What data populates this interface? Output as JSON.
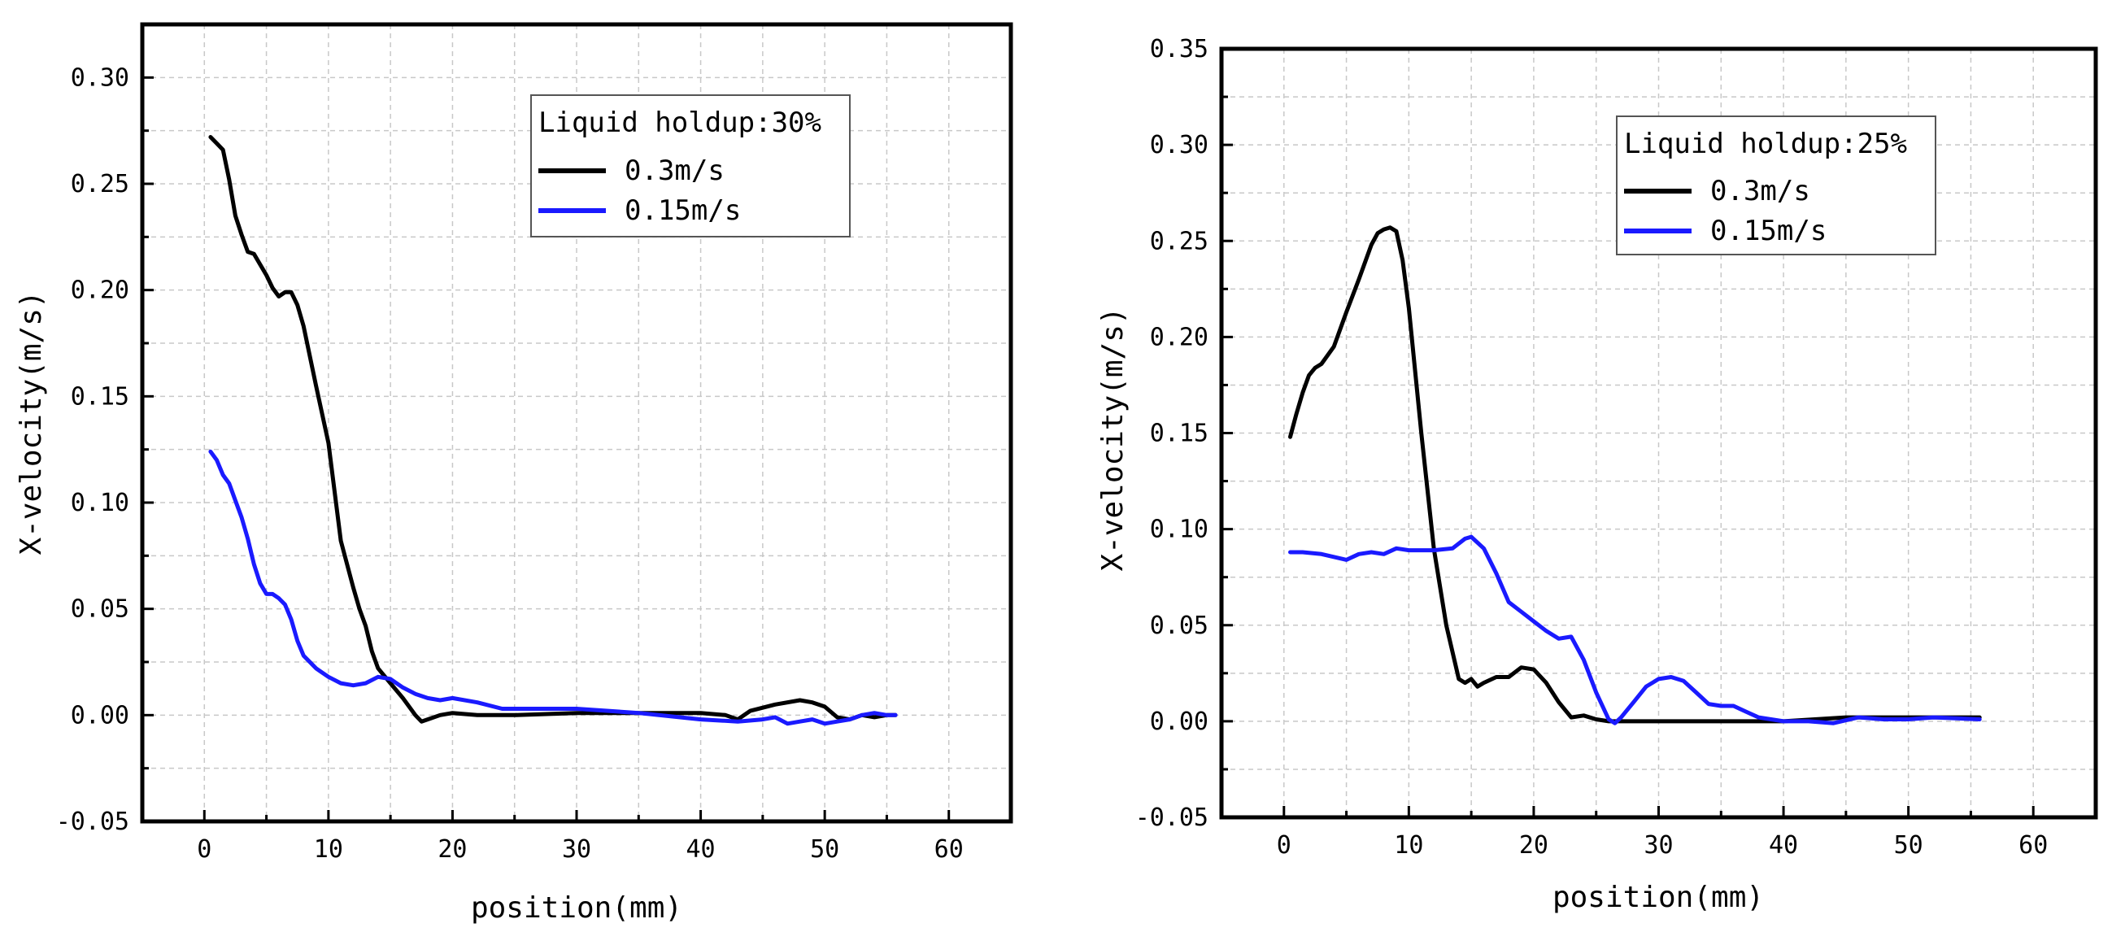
{
  "chart_data": [
    {
      "type": "line",
      "title": "",
      "xlabel": "position(mm)",
      "ylabel": "X-velocity(m/s)",
      "xlim": [
        -5,
        65
      ],
      "ylim": [
        -0.05,
        0.325
      ],
      "xticks": [
        0,
        10,
        20,
        30,
        40,
        50,
        60
      ],
      "xtick_labels": [
        "0",
        "10",
        "20",
        "30",
        "40",
        "50",
        "60"
      ],
      "yticks": [
        -0.05,
        0,
        0.05,
        0.1,
        0.15,
        0.2,
        0.25,
        0.3
      ],
      "ytick_labels": [
        "-0.05",
        "0.00",
        "0.05",
        "0.10",
        "0.15",
        "0.20",
        "0.25",
        "0.30"
      ],
      "grid": true,
      "legend": {
        "title": "Liquid holdup:30%",
        "position": "top-center"
      },
      "series": [
        {
          "name": "0.3m/s",
          "color": "#000000",
          "x": [
            0.5,
            1.0,
            1.5,
            2.0,
            2.5,
            3.0,
            3.5,
            4.0,
            4.5,
            5.0,
            5.5,
            6.0,
            6.5,
            7.0,
            7.5,
            8.0,
            9.0,
            10.0,
            10.5,
            11.0,
            12.0,
            12.5,
            13.0,
            13.5,
            14.0,
            15.0,
            16.0,
            17.0,
            17.5,
            18.0,
            19.0,
            20.0,
            22.0,
            25.0,
            30.0,
            35.0,
            40.0,
            42.0,
            43.0,
            44.0,
            46.0,
            48.0,
            49.0,
            50.0,
            51.0,
            52.0,
            53.0,
            54.0,
            55.0,
            55.7
          ],
          "y": [
            0.272,
            0.269,
            0.266,
            0.252,
            0.235,
            0.226,
            0.218,
            0.217,
            0.212,
            0.207,
            0.201,
            0.197,
            0.199,
            0.199,
            0.193,
            0.183,
            0.155,
            0.128,
            0.105,
            0.082,
            0.06,
            0.05,
            0.042,
            0.03,
            0.022,
            0.015,
            0.008,
            0.0,
            -0.003,
            -0.002,
            0.0,
            0.001,
            0.0,
            0.0,
            0.001,
            0.001,
            0.001,
            0.0,
            -0.002,
            0.002,
            0.005,
            0.007,
            0.006,
            0.004,
            -0.001,
            -0.002,
            0.0,
            -0.001,
            0.0,
            0.0
          ]
        },
        {
          "name": "0.15m/s",
          "color": "#1a1aff",
          "x": [
            0.5,
            1.0,
            1.5,
            2.0,
            2.5,
            3.0,
            3.5,
            4.0,
            4.5,
            5.0,
            5.5,
            6.0,
            6.5,
            7.0,
            7.5,
            8.0,
            8.5,
            9.0,
            9.5,
            10.0,
            11.0,
            12.0,
            13.0,
            14.0,
            15.0,
            16.0,
            17.0,
            18.0,
            19.0,
            20.0,
            22.0,
            24.0,
            26.0,
            30.0,
            35.0,
            40.0,
            43.0,
            45.0,
            46.0,
            47.0,
            48.0,
            49.0,
            50.0,
            51.0,
            52.0,
            53.0,
            54.0,
            55.0,
            55.7
          ],
          "y": [
            0.124,
            0.12,
            0.113,
            0.109,
            0.101,
            0.093,
            0.083,
            0.071,
            0.062,
            0.057,
            0.057,
            0.055,
            0.052,
            0.045,
            0.035,
            0.028,
            0.025,
            0.022,
            0.02,
            0.018,
            0.015,
            0.014,
            0.015,
            0.018,
            0.017,
            0.013,
            0.01,
            0.008,
            0.007,
            0.008,
            0.006,
            0.003,
            0.003,
            0.003,
            0.001,
            -0.002,
            -0.003,
            -0.002,
            -0.001,
            -0.004,
            -0.003,
            -0.002,
            -0.004,
            -0.003,
            -0.002,
            0.0,
            0.001,
            0.0,
            0.0
          ]
        }
      ]
    },
    {
      "type": "line",
      "title": "",
      "xlabel": "position(mm)",
      "ylabel": "X-velocity(m/s)",
      "xlim": [
        -5,
        65
      ],
      "ylim": [
        -0.05,
        0.35
      ],
      "xticks": [
        0,
        10,
        20,
        30,
        40,
        50,
        60
      ],
      "xtick_labels": [
        "0",
        "10",
        "20",
        "30",
        "40",
        "50",
        "60"
      ],
      "yticks": [
        -0.05,
        0,
        0.05,
        0.1,
        0.15,
        0.2,
        0.25,
        0.3,
        0.35
      ],
      "ytick_labels": [
        "-0.05",
        "0.00",
        "0.05",
        "0.10",
        "0.15",
        "0.20",
        "0.25",
        "0.30",
        "0.35"
      ],
      "grid": true,
      "legend": {
        "title": "Liquid holdup:25%",
        "position": "top-center"
      },
      "series": [
        {
          "name": "0.3m/s",
          "color": "#000000",
          "x": [
            0.5,
            1.0,
            1.5,
            2.0,
            2.5,
            3.0,
            4.0,
            5.0,
            6.0,
            7.0,
            7.5,
            8.0,
            8.5,
            9.0,
            9.5,
            10.0,
            11.0,
            12.0,
            13.0,
            14.0,
            14.5,
            15.0,
            15.5,
            16.0,
            17.0,
            18.0,
            19.0,
            20.0,
            21.0,
            22.0,
            23.0,
            24.0,
            25.0,
            26.0,
            27.0,
            30.0,
            35.0,
            40.0,
            45.0,
            50.0,
            55.7
          ],
          "y": [
            0.148,
            0.16,
            0.171,
            0.18,
            0.184,
            0.186,
            0.195,
            0.213,
            0.23,
            0.248,
            0.254,
            0.256,
            0.257,
            0.255,
            0.24,
            0.215,
            0.15,
            0.09,
            0.05,
            0.022,
            0.02,
            0.022,
            0.018,
            0.02,
            0.023,
            0.023,
            0.028,
            0.027,
            0.02,
            0.01,
            0.002,
            0.003,
            0.001,
            0.0,
            0.0,
            0.0,
            0.0,
            0.0,
            0.002,
            0.002,
            0.002
          ]
        },
        {
          "name": "0.15m/s",
          "color": "#1a1aff",
          "x": [
            0.5,
            1.5,
            3.0,
            5.0,
            6.0,
            7.0,
            8.0,
            9.0,
            10.0,
            12.0,
            13.5,
            14.5,
            15.0,
            16.0,
            17.0,
            18.0,
            19.0,
            20.0,
            21.0,
            22.0,
            23.0,
            24.0,
            25.0,
            26.0,
            26.5,
            27.0,
            28.0,
            29.0,
            30.0,
            31.0,
            32.0,
            33.0,
            34.0,
            35.0,
            36.0,
            37.0,
            38.0,
            40.0,
            42.0,
            44.0,
            46.0,
            48.0,
            50.0,
            52.0,
            55.7
          ],
          "y": [
            0.088,
            0.088,
            0.087,
            0.084,
            0.087,
            0.088,
            0.087,
            0.09,
            0.089,
            0.089,
            0.09,
            0.095,
            0.096,
            0.09,
            0.077,
            0.062,
            0.057,
            0.052,
            0.047,
            0.043,
            0.044,
            0.032,
            0.015,
            0.001,
            -0.001,
            0.002,
            0.01,
            0.018,
            0.022,
            0.023,
            0.021,
            0.015,
            0.009,
            0.008,
            0.008,
            0.005,
            0.002,
            0.0,
            0.0,
            -0.001,
            0.002,
            0.001,
            0.001,
            0.002,
            0.001
          ]
        }
      ]
    }
  ]
}
